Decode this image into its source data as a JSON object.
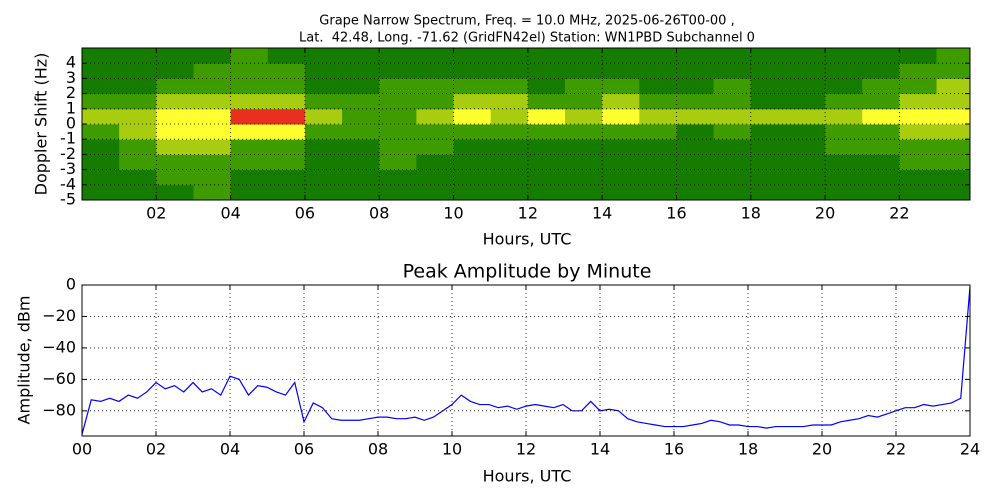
{
  "chart_data": [
    {
      "type": "heatmap",
      "title": [
        "Grape Narrow Spectrum, Freq. = 10.0 MHz, 2025-06-26T00-00 ,",
        "Lat.  42.48, Long. -71.62 (GridFN42el) Station: WN1PBD Subchannel 0"
      ],
      "xlabel": "Hours, UTC",
      "ylabel": "Doppler Shift (Hz)",
      "xlim": [
        0,
        23.9
      ],
      "ylim": [
        -5,
        5
      ],
      "xticks": [
        {
          "value": 2,
          "label": "02"
        },
        {
          "value": 4,
          "label": "04"
        },
        {
          "value": 6,
          "label": "06"
        },
        {
          "value": 8,
          "label": "08"
        },
        {
          "value": 10,
          "label": "10"
        },
        {
          "value": 12,
          "label": "12"
        },
        {
          "value": 14,
          "label": "14"
        },
        {
          "value": 16,
          "label": "16"
        },
        {
          "value": 18,
          "label": "18"
        },
        {
          "value": 20,
          "label": "20"
        },
        {
          "value": 22,
          "label": "22"
        }
      ],
      "yticks": [
        4,
        3,
        2,
        1,
        0,
        -1,
        -2,
        -3,
        -4,
        -5
      ],
      "grid": true,
      "colors": [
        "#157c00",
        "#3f9c00",
        "#a8cc10",
        "#ffff30",
        "#e83020"
      ],
      "xbins": [
        0,
        1,
        2,
        3,
        4,
        5,
        6,
        7,
        8,
        9,
        10,
        11,
        12,
        13,
        14,
        15,
        16,
        17,
        18,
        19,
        20,
        21,
        22,
        23,
        24
      ],
      "ybins": [
        -5,
        -4,
        -3,
        -2,
        -1,
        0,
        1,
        2,
        3,
        4,
        5
      ],
      "values": [
        [
          0,
          0,
          0,
          0,
          1,
          2,
          1,
          0,
          0,
          0
        ],
        [
          0,
          0,
          1,
          1,
          2,
          2,
          1,
          0,
          0,
          0
        ],
        [
          0,
          1,
          1,
          2,
          3,
          3,
          2,
          1,
          0,
          0
        ],
        [
          1,
          1,
          1,
          2,
          3,
          3,
          2,
          1,
          1,
          0
        ],
        [
          0,
          0,
          1,
          1,
          3,
          4,
          2,
          1,
          1,
          1
        ],
        [
          0,
          0,
          1,
          1,
          3,
          4,
          2,
          1,
          1,
          0
        ],
        [
          0,
          0,
          0,
          0,
          1,
          2,
          1,
          0,
          0,
          0
        ],
        [
          0,
          0,
          0,
          0,
          1,
          1,
          1,
          0,
          0,
          0
        ],
        [
          0,
          0,
          1,
          1,
          1,
          1,
          1,
          1,
          0,
          0
        ],
        [
          0,
          0,
          0,
          1,
          1,
          2,
          1,
          1,
          0,
          0
        ],
        [
          0,
          0,
          0,
          0,
          1,
          3,
          2,
          1,
          0,
          0
        ],
        [
          0,
          0,
          0,
          0,
          1,
          2,
          2,
          1,
          0,
          0
        ],
        [
          0,
          0,
          0,
          0,
          1,
          3,
          1,
          0,
          0,
          0
        ],
        [
          0,
          0,
          0,
          0,
          1,
          2,
          1,
          1,
          0,
          0
        ],
        [
          0,
          0,
          0,
          0,
          1,
          3,
          2,
          1,
          0,
          0
        ],
        [
          0,
          0,
          0,
          0,
          1,
          2,
          1,
          0,
          0,
          0
        ],
        [
          0,
          0,
          0,
          0,
          0,
          2,
          1,
          0,
          0,
          0
        ],
        [
          0,
          0,
          0,
          0,
          1,
          2,
          1,
          1,
          0,
          0
        ],
        [
          0,
          0,
          0,
          0,
          0,
          2,
          0,
          0,
          0,
          0
        ],
        [
          0,
          0,
          0,
          0,
          0,
          2,
          0,
          0,
          0,
          0
        ],
        [
          0,
          0,
          0,
          1,
          1,
          2,
          1,
          0,
          0,
          0
        ],
        [
          0,
          0,
          0,
          1,
          1,
          3,
          1,
          1,
          0,
          0
        ],
        [
          0,
          0,
          1,
          1,
          2,
          3,
          2,
          1,
          1,
          0
        ],
        [
          0,
          0,
          1,
          1,
          2,
          3,
          2,
          2,
          1,
          1
        ]
      ]
    },
    {
      "type": "line",
      "title": "Peak Amplitude by Minute",
      "xlabel": "Hours, UTC",
      "ylabel": "Amplitude, dBm",
      "xlim": [
        0,
        24
      ],
      "ylim": [
        -96,
        0
      ],
      "xticks": [
        {
          "value": 0,
          "label": "00"
        },
        {
          "value": 2,
          "label": "02"
        },
        {
          "value": 4,
          "label": "04"
        },
        {
          "value": 6,
          "label": "06"
        },
        {
          "value": 8,
          "label": "08"
        },
        {
          "value": 10,
          "label": "10"
        },
        {
          "value": 12,
          "label": "12"
        },
        {
          "value": 14,
          "label": "14"
        },
        {
          "value": 16,
          "label": "16"
        },
        {
          "value": 18,
          "label": "18"
        },
        {
          "value": 20,
          "label": "20"
        },
        {
          "value": 22,
          "label": "22"
        },
        {
          "value": 24,
          "label": "24"
        }
      ],
      "yticks": [
        0,
        {
          "value": -20,
          "label": "−20"
        },
        {
          "value": -40,
          "label": "−40"
        },
        {
          "value": -60,
          "label": "−60"
        },
        {
          "value": -80,
          "label": "−80"
        }
      ],
      "grid": true,
      "color": "#0000ff",
      "x": [
        0,
        0.25,
        0.5,
        0.75,
        1,
        1.25,
        1.5,
        1.75,
        2,
        2.25,
        2.5,
        2.75,
        3,
        3.25,
        3.5,
        3.75,
        4,
        4.25,
        4.5,
        4.75,
        5,
        5.25,
        5.5,
        5.75,
        6,
        6.25,
        6.5,
        6.75,
        7,
        7.25,
        7.5,
        7.75,
        8,
        8.25,
        8.5,
        8.75,
        9,
        9.25,
        9.5,
        9.75,
        10,
        10.25,
        10.5,
        10.75,
        11,
        11.25,
        11.5,
        11.75,
        12,
        12.25,
        12.5,
        12.75,
        13,
        13.25,
        13.5,
        13.75,
        14,
        14.25,
        14.5,
        14.75,
        15,
        15.25,
        15.5,
        15.75,
        16,
        16.25,
        16.5,
        16.75,
        17,
        17.25,
        17.5,
        17.75,
        18,
        18.25,
        18.5,
        18.75,
        19,
        19.25,
        19.5,
        19.75,
        20,
        20.25,
        20.5,
        20.75,
        21,
        21.25,
        21.5,
        21.75,
        22,
        22.25,
        22.5,
        22.75,
        23,
        23.25,
        23.5,
        23.75,
        24
      ],
      "values": [
        -95,
        -73,
        -74,
        -72,
        -74,
        -70,
        -72,
        -68,
        -62,
        -66,
        -64,
        -68,
        -62,
        -68,
        -66,
        -70,
        -58,
        -60,
        -70,
        -64,
        -65,
        -68,
        -70,
        -62,
        -87,
        -75,
        -78,
        -85,
        -86,
        -86,
        -86,
        -85,
        -84,
        -84,
        -85,
        -85,
        -84,
        -86,
        -84,
        -80,
        -76,
        -70,
        -74,
        -76,
        -76,
        -78,
        -77,
        -79,
        -77,
        -76,
        -77,
        -78,
        -76,
        -80,
        -80,
        -74,
        -80,
        -79,
        -80,
        -85,
        -87,
        -88,
        -89,
        -90,
        -90,
        -90,
        -89,
        -88,
        -86,
        -87,
        -89,
        -89,
        -90,
        -90,
        -91,
        -90,
        -90,
        -90,
        -90,
        -89,
        -89,
        -89,
        -87,
        -86,
        -85,
        -83,
        -84,
        -82,
        -80,
        -78,
        -78,
        -76,
        -77,
        -76,
        -75,
        -72,
        -1
      ]
    }
  ]
}
